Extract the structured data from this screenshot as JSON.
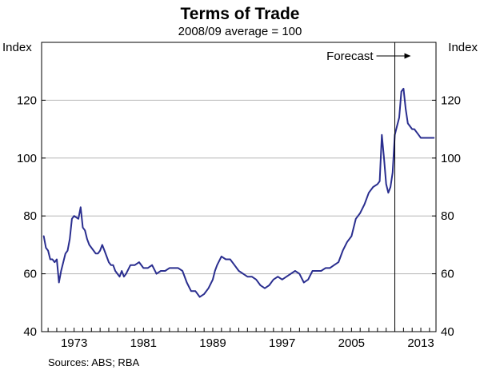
{
  "chart_data": {
    "type": "line",
    "title": "Terms of Trade",
    "subtitle": "2008/09 average = 100",
    "ylabel_left": "Index",
    "ylabel_right": "Index",
    "source": "Sources: ABS; RBA",
    "xlim": [
      1969.25,
      2014.75
    ],
    "ylim": [
      40,
      140
    ],
    "y_ticks": [
      40,
      60,
      80,
      100,
      120
    ],
    "x_ticks": [
      1973,
      1981,
      1989,
      1997,
      2005,
      2013
    ],
    "grid": true,
    "forecast": {
      "label": "Forecast",
      "x": 2010.0,
      "arrow": "right"
    },
    "series": [
      {
        "color": "#2a2e8f",
        "x": [
          1969.5,
          1969.75,
          1970.0,
          1970.25,
          1970.5,
          1970.75,
          1971.0,
          1971.25,
          1971.5,
          1971.75,
          1972.0,
          1972.25,
          1972.5,
          1972.75,
          1973.0,
          1973.25,
          1973.5,
          1973.75,
          1974.0,
          1974.25,
          1974.5,
          1974.75,
          1975.0,
          1975.25,
          1975.5,
          1975.75,
          1976.0,
          1976.25,
          1976.5,
          1976.75,
          1977.0,
          1977.25,
          1977.5,
          1977.75,
          1978.0,
          1978.25,
          1978.5,
          1978.75,
          1979.0,
          1979.5,
          1980.0,
          1980.5,
          1981.0,
          1981.5,
          1982.0,
          1982.5,
          1983.0,
          1983.5,
          1984.0,
          1984.5,
          1985.0,
          1985.5,
          1986.0,
          1986.5,
          1987.0,
          1987.5,
          1988.0,
          1988.5,
          1989.0,
          1989.25,
          1989.5,
          1990.0,
          1990.5,
          1991.0,
          1991.5,
          1992.0,
          1992.5,
          1993.0,
          1993.5,
          1994.0,
          1994.5,
          1995.0,
          1995.5,
          1996.0,
          1996.5,
          1997.0,
          1997.5,
          1998.0,
          1998.5,
          1999.0,
          1999.5,
          2000.0,
          2000.5,
          2001.0,
          2001.5,
          2002.0,
          2002.5,
          2003.0,
          2003.5,
          2004.0,
          2004.5,
          2005.0,
          2005.5,
          2006.0,
          2006.5,
          2007.0,
          2007.5,
          2008.0,
          2008.25,
          2008.5,
          2008.75,
          2009.0,
          2009.25,
          2009.5,
          2009.75,
          2010.0,
          2010.25,
          2010.5,
          2010.75,
          2011.0,
          2011.25,
          2011.5,
          2011.75,
          2012.0,
          2012.25,
          2012.5,
          2012.75,
          2013.0,
          2013.5,
          2014.0,
          2014.5
        ],
        "y": [
          73,
          69,
          68,
          65,
          65,
          64,
          65,
          57,
          61,
          64,
          67,
          68,
          72,
          79,
          80,
          79.5,
          79,
          83,
          76,
          75,
          72,
          70,
          69,
          68,
          67,
          67,
          68,
          70,
          68,
          66,
          64,
          63,
          63,
          61,
          60,
          59,
          61,
          59,
          60,
          63,
          63,
          64,
          62,
          62,
          63,
          60,
          61,
          61,
          62,
          62,
          62,
          61,
          57,
          54,
          54,
          52,
          53,
          55,
          58,
          61,
          63,
          66,
          65,
          65,
          63,
          61,
          60,
          59,
          59,
          58,
          56,
          55,
          56,
          58,
          59,
          58,
          59,
          60,
          61,
          60,
          57,
          58,
          61,
          61,
          61,
          62,
          62,
          63,
          64,
          68,
          71,
          73,
          79,
          81,
          84,
          88,
          90,
          91,
          92,
          108,
          100,
          91,
          88,
          90,
          95,
          108,
          111,
          114,
          123,
          124,
          117,
          112,
          111,
          110,
          110,
          109,
          108,
          107,
          107,
          107,
          107
        ]
      }
    ]
  }
}
